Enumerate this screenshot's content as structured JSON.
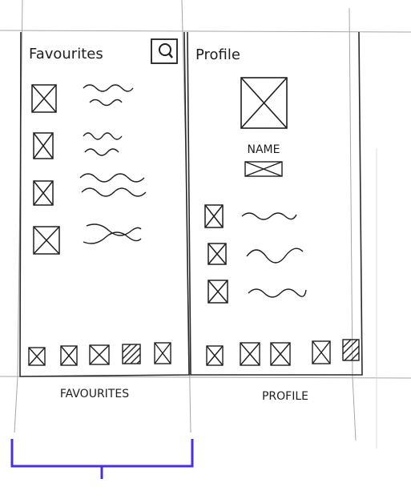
{
  "favourites": {
    "title": "Favourites",
    "caption": "FAVOURITES"
  },
  "profile": {
    "title": "Profile",
    "name_label": "NAME",
    "caption": "PROFILE"
  },
  "colors": {
    "ink": "#1e1e1e",
    "pencil": "#9a9a9a",
    "bracket": "#4a2fe0",
    "paper": "#ffffff"
  },
  "icons": {
    "search": "search-icon",
    "placeholder": "placeholder-image-icon",
    "scribble": "scribble-text"
  }
}
